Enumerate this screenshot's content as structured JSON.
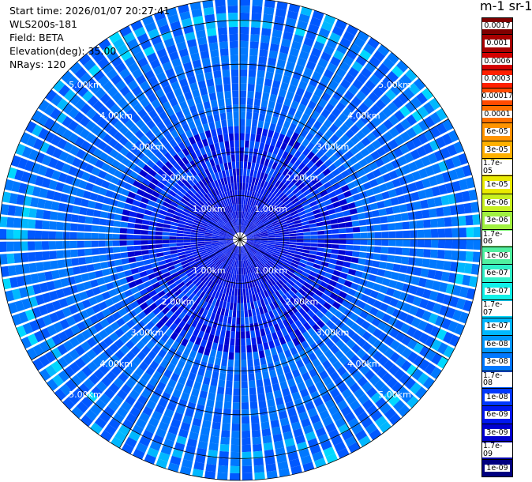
{
  "header": {
    "start_time": "Start time: 2026/01/07 20:27:41",
    "instrument": "WLS200s-181",
    "field": "Field: BETA",
    "elevation": "Elevation(deg): 35.00",
    "nrays": "NRays: 120",
    "unit": "m-1 sr-1"
  },
  "chart_data": {
    "type": "heatmap",
    "projection": "polar",
    "n_rays": 120,
    "max_range_km": 5.5,
    "range_rings_km": [
      1.0,
      2.0,
      3.0,
      4.0,
      5.0
    ],
    "ring_labels": [
      "1.00km",
      "2.00km",
      "3.00km",
      "4.00km",
      "5.00km"
    ],
    "grid": true,
    "colorbar": {
      "labels": [
        "0.0017",
        "0.001",
        "0.0006",
        "0.0003",
        "0.00017",
        "0.0001",
        "6e-05",
        "3e-05",
        "1.7e-05",
        "1e-05",
        "6e-06",
        "3e-06",
        "1.7e-06",
        "1e-06",
        "6e-07",
        "3e-07",
        "1.7e-07",
        "1e-07",
        "6e-08",
        "3e-08",
        "1.7e-08",
        "1e-08",
        "6e-09",
        "3e-09",
        "1.7e-09",
        "1e-09"
      ],
      "colors": [
        "#800000",
        "#a80000",
        "#d40000",
        "#ff2000",
        "#ff4a00",
        "#ff7000",
        "#ff9400",
        "#ffb000",
        "#ffd000",
        "#eaea00",
        "#c8f020",
        "#a0f040",
        "#78f070",
        "#50f0a0",
        "#30f0c8",
        "#10f0e8",
        "#00d8ff",
        "#00b8ff",
        "#0098ff",
        "#0078ff",
        "#0058ff",
        "#0038ff",
        "#0018f0",
        "#0000d0",
        "#0000a8",
        "#000080"
      ]
    }
  }
}
